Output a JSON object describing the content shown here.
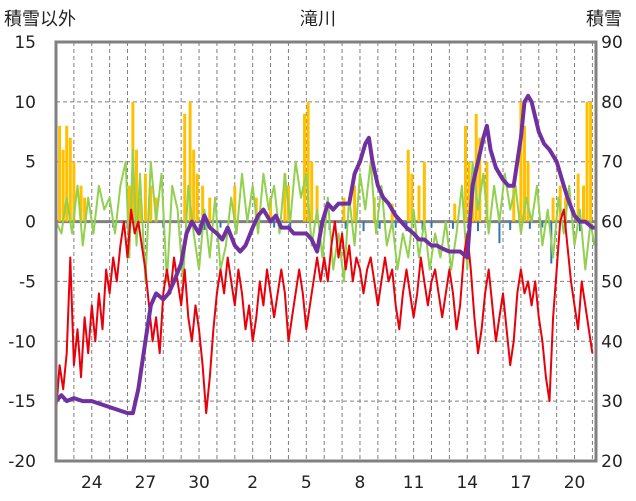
{
  "chart_data": {
    "type": "line",
    "title": "滝川",
    "ylabel_left": "積雪以外",
    "ylabel_right": "積雪",
    "y_left_range": [
      -20,
      15
    ],
    "y_right_range": [
      20,
      90
    ],
    "y_left_ticks": [
      "15",
      "10",
      "5",
      "0",
      "-5",
      "-10",
      "-15",
      "-20"
    ],
    "y_right_ticks": [
      "90",
      "80",
      "70",
      "60",
      "50",
      "40",
      "30",
      "20"
    ],
    "x_range": [
      22,
      52.2
    ],
    "x_ticks": [
      {
        "x": 24,
        "label": "24"
      },
      {
        "x": 27,
        "label": "27"
      },
      {
        "x": 30,
        "label": "30"
      },
      {
        "x": 33,
        "label": "2"
      },
      {
        "x": 36,
        "label": "5"
      },
      {
        "x": 39,
        "label": "8"
      },
      {
        "x": 42,
        "label": "11"
      },
      {
        "x": 45,
        "label": "14"
      },
      {
        "x": 48,
        "label": "17"
      },
      {
        "x": 51,
        "label": "20"
      }
    ],
    "grid": true,
    "colors": {
      "snowfall": "#ffc000",
      "precipitation": "#2e75b6",
      "temp_max": "#92d050",
      "temp_min": "#e8000b",
      "snow_depth": "#7030a0",
      "frame": "#808080",
      "zero_line": "#808080",
      "grid": "#808080"
    },
    "snowfall_bars": [
      [
        22.2,
        8
      ],
      [
        22.4,
        6
      ],
      [
        22.6,
        8
      ],
      [
        22.8,
        7
      ],
      [
        23.0,
        5
      ],
      [
        23.4,
        3
      ],
      [
        23.6,
        2
      ],
      [
        26.1,
        3
      ],
      [
        26.3,
        10
      ],
      [
        26.5,
        6
      ],
      [
        26.7,
        2
      ],
      [
        27.0,
        4
      ],
      [
        27.3,
        3
      ],
      [
        27.6,
        2
      ],
      [
        29.2,
        9
      ],
      [
        29.5,
        10
      ],
      [
        29.7,
        6
      ],
      [
        29.9,
        4
      ],
      [
        30.2,
        3
      ],
      [
        30.6,
        2
      ],
      [
        32.0,
        3
      ],
      [
        33.2,
        2
      ],
      [
        34.0,
        2
      ],
      [
        34.8,
        4
      ],
      [
        35.0,
        3
      ],
      [
        35.9,
        9
      ],
      [
        36.1,
        10
      ],
      [
        36.3,
        5
      ],
      [
        36.6,
        3
      ],
      [
        38.1,
        2
      ],
      [
        38.7,
        3
      ],
      [
        39.8,
        2
      ],
      [
        40.8,
        1.5
      ],
      [
        41.7,
        6
      ],
      [
        41.9,
        4
      ],
      [
        42.3,
        3
      ],
      [
        42.6,
        5
      ],
      [
        44.3,
        1.5
      ],
      [
        44.9,
        8
      ],
      [
        45.1,
        5
      ],
      [
        45.3,
        4
      ],
      [
        45.5,
        9
      ],
      [
        45.7,
        7
      ],
      [
        46.1,
        5
      ],
      [
        47.6,
        3
      ],
      [
        48.0,
        10
      ],
      [
        48.2,
        8
      ],
      [
        48.4,
        5
      ],
      [
        49.8,
        2
      ],
      [
        50.2,
        3
      ],
      [
        50.5,
        2
      ],
      [
        51.2,
        4
      ],
      [
        51.5,
        3
      ],
      [
        51.7,
        10
      ],
      [
        51.9,
        10
      ]
    ],
    "precip_bars": [
      [
        25.2,
        -0.5
      ],
      [
        26.0,
        -0.6
      ],
      [
        28.0,
        -0.5
      ],
      [
        29.5,
        -0.6
      ],
      [
        30.3,
        -0.7
      ],
      [
        31.2,
        -0.5
      ],
      [
        34.2,
        -0.5
      ],
      [
        35.1,
        -0.6
      ],
      [
        37.3,
        -0.7
      ],
      [
        38.2,
        -0.6
      ],
      [
        39.2,
        -0.8
      ],
      [
        40.1,
        -0.6
      ],
      [
        41.0,
        -0.5
      ],
      [
        41.6,
        -0.8
      ],
      [
        42.5,
        -0.7
      ],
      [
        43.0,
        -0.5
      ],
      [
        44.2,
        -0.6
      ],
      [
        45.6,
        -0.8
      ],
      [
        46.8,
        -1.8
      ],
      [
        47.4,
        -0.7
      ],
      [
        48.5,
        -0.6
      ],
      [
        49.2,
        -0.5
      ],
      [
        49.7,
        -3.5
      ],
      [
        50.5,
        -0.6
      ],
      [
        51.3,
        -0.8
      ]
    ],
    "temp_max": [
      [
        22.0,
        0
      ],
      [
        22.3,
        -1
      ],
      [
        22.6,
        2
      ],
      [
        22.9,
        -1
      ],
      [
        23.2,
        3
      ],
      [
        23.5,
        -2
      ],
      [
        23.8,
        2
      ],
      [
        24.1,
        -1
      ],
      [
        24.4,
        3
      ],
      [
        24.7,
        1
      ],
      [
        25.0,
        2
      ],
      [
        25.3,
        -1
      ],
      [
        25.6,
        3
      ],
      [
        25.9,
        5
      ],
      [
        26.1,
        -3
      ],
      [
        26.3,
        6
      ],
      [
        26.5,
        -2
      ],
      [
        26.7,
        4
      ],
      [
        27.0,
        -5
      ],
      [
        27.3,
        5
      ],
      [
        27.6,
        0
      ],
      [
        27.9,
        4
      ],
      [
        28.2,
        -5
      ],
      [
        28.5,
        3
      ],
      [
        28.8,
        1
      ],
      [
        29.1,
        -5
      ],
      [
        29.4,
        3
      ],
      [
        29.7,
        -1
      ],
      [
        30.0,
        -4
      ],
      [
        30.3,
        1
      ],
      [
        30.6,
        -3
      ],
      [
        30.9,
        2
      ],
      [
        31.2,
        -4
      ],
      [
        31.5,
        -2
      ],
      [
        31.8,
        2
      ],
      [
        32.1,
        -1
      ],
      [
        32.4,
        4
      ],
      [
        32.7,
        0
      ],
      [
        33.0,
        3
      ],
      [
        33.3,
        -1
      ],
      [
        33.6,
        4
      ],
      [
        33.9,
        1
      ],
      [
        34.2,
        3
      ],
      [
        34.5,
        -1
      ],
      [
        34.8,
        4
      ],
      [
        35.1,
        0
      ],
      [
        35.4,
        5
      ],
      [
        35.7,
        2
      ],
      [
        36.0,
        4
      ],
      [
        36.3,
        -2
      ],
      [
        36.6,
        1
      ],
      [
        36.9,
        -3
      ],
      [
        37.2,
        2
      ],
      [
        37.5,
        -4
      ],
      [
        37.8,
        -1
      ],
      [
        38.1,
        -5
      ],
      [
        38.4,
        2
      ],
      [
        38.7,
        -2
      ],
      [
        39.0,
        4
      ],
      [
        39.3,
        1
      ],
      [
        39.6,
        5
      ],
      [
        39.9,
        -1
      ],
      [
        40.2,
        3
      ],
      [
        40.5,
        -2
      ],
      [
        40.8,
        0
      ],
      [
        41.1,
        -4
      ],
      [
        41.4,
        -1
      ],
      [
        41.7,
        -3
      ],
      [
        42.0,
        1
      ],
      [
        42.3,
        -3
      ],
      [
        42.6,
        0
      ],
      [
        42.9,
        -4
      ],
      [
        43.2,
        -1
      ],
      [
        43.5,
        -3
      ],
      [
        43.8,
        0
      ],
      [
        44.1,
        -4
      ],
      [
        44.4,
        -1
      ],
      [
        44.7,
        3
      ],
      [
        45.0,
        -4
      ],
      [
        45.3,
        5
      ],
      [
        45.6,
        1
      ],
      [
        45.9,
        4
      ],
      [
        46.2,
        -1
      ],
      [
        46.5,
        3
      ],
      [
        46.8,
        0
      ],
      [
        47.1,
        4
      ],
      [
        47.4,
        1
      ],
      [
        47.7,
        3
      ],
      [
        48.0,
        -1
      ],
      [
        48.3,
        2
      ],
      [
        48.6,
        0
      ],
      [
        48.9,
        3
      ],
      [
        49.2,
        -2
      ],
      [
        49.5,
        1
      ],
      [
        49.8,
        -3
      ],
      [
        50.1,
        2
      ],
      [
        50.4,
        -1
      ],
      [
        50.7,
        3
      ],
      [
        51.0,
        -2
      ],
      [
        51.3,
        1
      ],
      [
        51.6,
        -4
      ],
      [
        51.9,
        0
      ],
      [
        52.1,
        -2
      ]
    ],
    "temp_min": [
      [
        22.0,
        -16
      ],
      [
        22.2,
        -12
      ],
      [
        22.4,
        -14
      ],
      [
        22.6,
        -11
      ],
      [
        22.8,
        -3
      ],
      [
        23.0,
        -12
      ],
      [
        23.2,
        -9
      ],
      [
        23.4,
        -13
      ],
      [
        23.6,
        -8
      ],
      [
        23.8,
        -11
      ],
      [
        24.0,
        -7
      ],
      [
        24.2,
        -10
      ],
      [
        24.4,
        -6
      ],
      [
        24.6,
        -9
      ],
      [
        24.8,
        -4
      ],
      [
        25.0,
        -6
      ],
      [
        25.2,
        -3
      ],
      [
        25.4,
        -5
      ],
      [
        25.6,
        -2
      ],
      [
        25.8,
        0
      ],
      [
        26.0,
        -3
      ],
      [
        26.2,
        1
      ],
      [
        26.4,
        -1
      ],
      [
        26.6,
        0
      ],
      [
        26.8,
        -2
      ],
      [
        27.0,
        -4
      ],
      [
        27.2,
        -7
      ],
      [
        27.4,
        -10
      ],
      [
        27.6,
        -8
      ],
      [
        27.8,
        -11
      ],
      [
        28.0,
        -6
      ],
      [
        28.2,
        -4
      ],
      [
        28.4,
        -6
      ],
      [
        28.6,
        -3
      ],
      [
        28.8,
        -5
      ],
      [
        29.0,
        -7
      ],
      [
        29.2,
        -4
      ],
      [
        29.4,
        -8
      ],
      [
        29.6,
        -10
      ],
      [
        29.8,
        -7
      ],
      [
        30.0,
        -9
      ],
      [
        30.2,
        -12
      ],
      [
        30.4,
        -16
      ],
      [
        30.6,
        -13
      ],
      [
        30.8,
        -9
      ],
      [
        31.0,
        -6
      ],
      [
        31.2,
        -4
      ],
      [
        31.4,
        -6
      ],
      [
        31.6,
        -3
      ],
      [
        31.8,
        -5
      ],
      [
        32.0,
        -7
      ],
      [
        32.2,
        -4
      ],
      [
        32.4,
        -6
      ],
      [
        32.6,
        -9
      ],
      [
        32.8,
        -7
      ],
      [
        33.0,
        -10
      ],
      [
        33.2,
        -8
      ],
      [
        33.4,
        -5
      ],
      [
        33.6,
        -7
      ],
      [
        33.8,
        -4
      ],
      [
        34.0,
        -6
      ],
      [
        34.2,
        -8
      ],
      [
        34.4,
        -6
      ],
      [
        34.6,
        -4
      ],
      [
        34.8,
        -6
      ],
      [
        35.0,
        -10
      ],
      [
        35.2,
        -8
      ],
      [
        35.4,
        -6
      ],
      [
        35.6,
        -4
      ],
      [
        35.8,
        -6
      ],
      [
        36.0,
        -9
      ],
      [
        36.2,
        -7
      ],
      [
        36.4,
        -5
      ],
      [
        36.6,
        -3
      ],
      [
        36.8,
        -5
      ],
      [
        37.0,
        -3
      ],
      [
        37.2,
        -5
      ],
      [
        37.4,
        -2
      ],
      [
        37.6,
        0
      ],
      [
        37.8,
        -3
      ],
      [
        38.0,
        -1
      ],
      [
        38.2,
        -4
      ],
      [
        38.4,
        -2
      ],
      [
        38.6,
        -5
      ],
      [
        38.8,
        -3
      ],
      [
        39.0,
        -4
      ],
      [
        39.2,
        -6
      ],
      [
        39.4,
        -4
      ],
      [
        39.6,
        -3
      ],
      [
        39.8,
        -5
      ],
      [
        40.0,
        -7
      ],
      [
        40.2,
        -5
      ],
      [
        40.4,
        -3
      ],
      [
        40.6,
        -5
      ],
      [
        40.8,
        -4
      ],
      [
        41.0,
        -7
      ],
      [
        41.2,
        -9
      ],
      [
        41.4,
        -6
      ],
      [
        41.6,
        -4
      ],
      [
        41.8,
        -6
      ],
      [
        42.0,
        -8
      ],
      [
        42.2,
        -6
      ],
      [
        42.4,
        -3
      ],
      [
        42.6,
        -5
      ],
      [
        42.8,
        -7
      ],
      [
        43.0,
        -5
      ],
      [
        43.2,
        -4
      ],
      [
        43.4,
        -6
      ],
      [
        43.6,
        -8
      ],
      [
        43.8,
        -6
      ],
      [
        44.0,
        -4
      ],
      [
        44.2,
        -6
      ],
      [
        44.4,
        -9
      ],
      [
        44.6,
        -7
      ],
      [
        44.8,
        -3
      ],
      [
        45.0,
        -1
      ],
      [
        45.2,
        -4
      ],
      [
        45.4,
        -8
      ],
      [
        45.6,
        -11
      ],
      [
        45.8,
        -9
      ],
      [
        46.0,
        -6
      ],
      [
        46.2,
        -4
      ],
      [
        46.4,
        -7
      ],
      [
        46.6,
        -10
      ],
      [
        46.8,
        -8
      ],
      [
        47.0,
        -6
      ],
      [
        47.2,
        -9
      ],
      [
        47.4,
        -12
      ],
      [
        47.6,
        -10
      ],
      [
        47.8,
        -6
      ],
      [
        48.0,
        -4
      ],
      [
        48.2,
        -6
      ],
      [
        48.4,
        -5
      ],
      [
        48.6,
        -7
      ],
      [
        48.8,
        -5
      ],
      [
        49.0,
        -8
      ],
      [
        49.2,
        -10
      ],
      [
        49.4,
        -13
      ],
      [
        49.6,
        -15
      ],
      [
        49.8,
        -8
      ],
      [
        50.0,
        -4
      ],
      [
        50.2,
        0
      ],
      [
        50.4,
        1
      ],
      [
        50.6,
        -2
      ],
      [
        50.8,
        -5
      ],
      [
        51.0,
        -7
      ],
      [
        51.2,
        -9
      ],
      [
        51.4,
        -5
      ],
      [
        51.6,
        -7
      ],
      [
        51.8,
        -9
      ],
      [
        52.0,
        -11
      ]
    ],
    "snow_depth": [
      [
        22.0,
        30
      ],
      [
        22.3,
        31
      ],
      [
        22.6,
        30
      ],
      [
        23.0,
        30.5
      ],
      [
        23.5,
        30
      ],
      [
        24.0,
        30
      ],
      [
        24.5,
        29.5
      ],
      [
        25.0,
        29
      ],
      [
        25.5,
        28.5
      ],
      [
        26.0,
        28
      ],
      [
        26.3,
        28
      ],
      [
        26.6,
        32
      ],
      [
        27.0,
        40
      ],
      [
        27.3,
        46
      ],
      [
        27.6,
        48
      ],
      [
        28.0,
        47
      ],
      [
        28.3,
        48
      ],
      [
        28.6,
        50
      ],
      [
        29.0,
        53
      ],
      [
        29.3,
        58
      ],
      [
        29.6,
        60
      ],
      [
        30.0,
        58
      ],
      [
        30.3,
        61
      ],
      [
        30.6,
        59
      ],
      [
        31.0,
        58
      ],
      [
        31.3,
        57
      ],
      [
        31.6,
        59
      ],
      [
        32.0,
        56
      ],
      [
        32.3,
        55
      ],
      [
        32.6,
        56
      ],
      [
        33.0,
        59
      ],
      [
        33.3,
        61
      ],
      [
        33.6,
        62
      ],
      [
        34.0,
        60
      ],
      [
        34.3,
        61
      ],
      [
        34.6,
        59
      ],
      [
        35.0,
        59
      ],
      [
        35.3,
        58
      ],
      [
        35.6,
        58
      ],
      [
        36.0,
        58
      ],
      [
        36.3,
        57
      ],
      [
        36.6,
        55
      ],
      [
        36.9,
        60
      ],
      [
        37.2,
        63
      ],
      [
        37.5,
        62
      ],
      [
        37.8,
        63
      ],
      [
        38.1,
        63
      ],
      [
        38.4,
        63
      ],
      [
        38.7,
        68
      ],
      [
        39.0,
        70
      ],
      [
        39.3,
        73
      ],
      [
        39.5,
        74
      ],
      [
        39.7,
        70
      ],
      [
        40.0,
        66
      ],
      [
        40.3,
        64
      ],
      [
        40.6,
        63
      ],
      [
        41.0,
        61
      ],
      [
        41.3,
        60
      ],
      [
        41.6,
        59
      ],
      [
        42.0,
        58
      ],
      [
        42.3,
        57
      ],
      [
        42.6,
        57
      ],
      [
        43.0,
        56
      ],
      [
        43.3,
        56
      ],
      [
        43.6,
        55.5
      ],
      [
        44.0,
        55
      ],
      [
        44.3,
        55
      ],
      [
        44.6,
        55
      ],
      [
        45.0,
        54
      ],
      [
        45.3,
        66
      ],
      [
        45.6,
        70
      ],
      [
        45.9,
        74
      ],
      [
        46.1,
        76
      ],
      [
        46.3,
        72
      ],
      [
        46.6,
        69
      ],
      [
        47.0,
        67
      ],
      [
        47.3,
        66
      ],
      [
        47.6,
        66
      ],
      [
        48.0,
        74
      ],
      [
        48.2,
        80
      ],
      [
        48.4,
        81
      ],
      [
        48.6,
        80
      ],
      [
        49.0,
        75
      ],
      [
        49.3,
        73
      ],
      [
        49.6,
        72
      ],
      [
        50.0,
        70
      ],
      [
        50.3,
        67
      ],
      [
        50.6,
        64
      ],
      [
        51.0,
        61
      ],
      [
        51.3,
        60
      ],
      [
        51.6,
        60
      ],
      [
        52.0,
        59
      ],
      [
        52.2,
        59
      ]
    ]
  }
}
